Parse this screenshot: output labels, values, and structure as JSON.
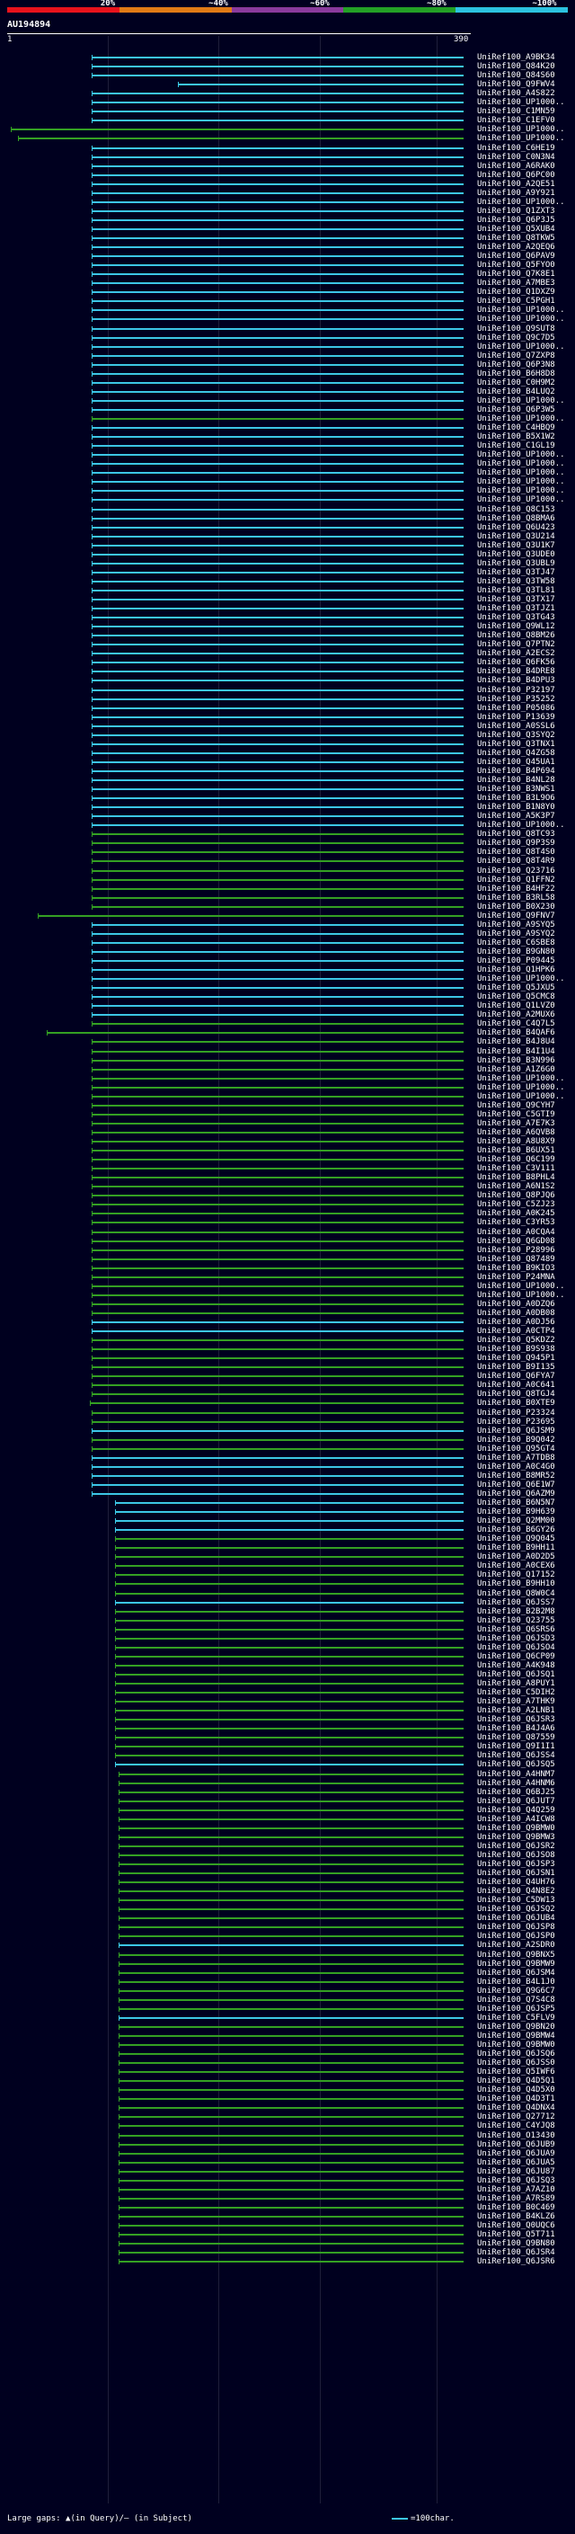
{
  "percent_labels": [
    "20%",
    "~40%",
    "~60%",
    "~80%",
    "~100%"
  ],
  "colors": {
    "red": "#e8121c",
    "orange": "#e07a16",
    "purple": "#8a3a9c",
    "green": "#23a026",
    "cyan": "#2cc2e0",
    "hit_blue": "#3cc6e6",
    "hit_green": "#34a023",
    "background": "#00001f"
  },
  "query_id": "AU194894",
  "axis": {
    "start": "1",
    "end": "390"
  },
  "legend": {
    "large_gaps": "Large gaps: ▲(in Query)/— (in Subject)",
    "scale": "=100char."
  },
  "hits": [
    {
      "label": "UniRef100_A9BK34",
      "color": "blue"
    },
    {
      "label": "UniRef100_Q84K20",
      "color": "blue"
    },
    {
      "label": "UniRef100_Q84S60",
      "color": "blue"
    },
    {
      "label": "UniRef100_Q9FWV4",
      "color": "blue"
    },
    {
      "label": "UniRef100_A4S822",
      "color": "blue"
    },
    {
      "label": "UniRef100_UP1000..",
      "color": "blue"
    },
    {
      "label": "UniRef100_C1MN59",
      "color": "blue"
    },
    {
      "label": "UniRef100_C1EFV0",
      "color": "blue"
    },
    {
      "label": "UniRef100_UP1000..",
      "color": "green"
    },
    {
      "label": "UniRef100_UP1000..",
      "color": "green"
    },
    {
      "label": "UniRef100_C6HE19",
      "color": "blue"
    },
    {
      "label": "UniRef100_C0N3N4",
      "color": "blue"
    },
    {
      "label": "UniRef100_A6RAK0",
      "color": "blue"
    },
    {
      "label": "UniRef100_Q6PC00",
      "color": "blue"
    },
    {
      "label": "UniRef100_A2QE51",
      "color": "blue"
    },
    {
      "label": "UniRef100_A9Y921",
      "color": "blue"
    },
    {
      "label": "UniRef100_UP1000..",
      "color": "blue"
    },
    {
      "label": "UniRef100_Q1ZXT3",
      "color": "blue"
    },
    {
      "label": "UniRef100_Q6P3J5",
      "color": "blue"
    },
    {
      "label": "UniRef100_Q5XUB4",
      "color": "blue"
    },
    {
      "label": "UniRef100_Q8TKW5",
      "color": "blue"
    },
    {
      "label": "UniRef100_A2QEQ6",
      "color": "blue"
    },
    {
      "label": "UniRef100_Q6PAV9",
      "color": "blue"
    },
    {
      "label": "UniRef100_Q5FYO0",
      "color": "blue"
    },
    {
      "label": "UniRef100_Q7K8E1",
      "color": "blue"
    },
    {
      "label": "UniRef100_A7MBE3",
      "color": "blue"
    },
    {
      "label": "UniRef100_Q1DXZ9",
      "color": "blue"
    },
    {
      "label": "UniRef100_C5PGH1",
      "color": "blue"
    },
    {
      "label": "UniRef100_UP1000..",
      "color": "blue"
    },
    {
      "label": "UniRef100_UP1000..",
      "color": "blue"
    },
    {
      "label": "UniRef100_Q9SUT8",
      "color": "blue"
    },
    {
      "label": "UniRef100_Q9C7D5",
      "color": "blue"
    },
    {
      "label": "UniRef100_UP1000..",
      "color": "blue"
    },
    {
      "label": "UniRef100_Q7ZXP8",
      "color": "blue"
    },
    {
      "label": "UniRef100_Q6P3N8",
      "color": "blue"
    },
    {
      "label": "UniRef100_B6H8D8",
      "color": "blue"
    },
    {
      "label": "UniRef100_C0H9M2",
      "color": "blue"
    },
    {
      "label": "UniRef100_B4LUQ2",
      "color": "blue"
    },
    {
      "label": "UniRef100_UP1000..",
      "color": "blue"
    },
    {
      "label": "UniRef100_Q6P3W5",
      "color": "blue"
    },
    {
      "label": "UniRef100_UP1000..",
      "color": "green"
    },
    {
      "label": "UniRef100_C4HBQ9",
      "color": "blue"
    },
    {
      "label": "UniRef100_B5X1W2",
      "color": "blue"
    },
    {
      "label": "UniRef100_C1GL19",
      "color": "blue"
    },
    {
      "label": "UniRef100_UP1000..",
      "color": "blue"
    },
    {
      "label": "UniRef100_UP1000..",
      "color": "blue"
    },
    {
      "label": "UniRef100_UP1000..",
      "color": "blue"
    },
    {
      "label": "UniRef100_UP1000..",
      "color": "blue"
    },
    {
      "label": "UniRef100_UP1000..",
      "color": "blue"
    },
    {
      "label": "UniRef100_UP1000..",
      "color": "blue"
    },
    {
      "label": "UniRef100_Q8C153",
      "color": "blue"
    },
    {
      "label": "UniRef100_Q8BMA6",
      "color": "blue"
    },
    {
      "label": "UniRef100_Q6U423",
      "color": "blue"
    },
    {
      "label": "UniRef100_Q3U214",
      "color": "blue"
    },
    {
      "label": "UniRef100_Q3U1K7",
      "color": "blue"
    },
    {
      "label": "UniRef100_Q3UDE0",
      "color": "blue"
    },
    {
      "label": "UniRef100_Q3UBL9",
      "color": "blue"
    },
    {
      "label": "UniRef100_Q3TJ47",
      "color": "blue"
    },
    {
      "label": "UniRef100_Q3TW58",
      "color": "blue"
    },
    {
      "label": "UniRef100_Q3TL81",
      "color": "blue"
    },
    {
      "label": "UniRef100_Q3TX17",
      "color": "blue"
    },
    {
      "label": "UniRef100_Q3TJZ1",
      "color": "blue"
    },
    {
      "label": "UniRef100_Q3TG43",
      "color": "blue"
    },
    {
      "label": "UniRef100_Q9WL12",
      "color": "blue"
    },
    {
      "label": "UniRef100_Q8BM26",
      "color": "blue"
    },
    {
      "label": "UniRef100_Q7PTN2",
      "color": "blue"
    },
    {
      "label": "UniRef100_A2ECS2",
      "color": "blue"
    },
    {
      "label": "UniRef100_Q6FK56",
      "color": "blue"
    },
    {
      "label": "UniRef100_B4DRE8",
      "color": "blue"
    },
    {
      "label": "UniRef100_B4DPU3",
      "color": "blue"
    },
    {
      "label": "UniRef100_P32197",
      "color": "blue"
    },
    {
      "label": "UniRef100_P35252",
      "color": "blue"
    },
    {
      "label": "UniRef100_P05086",
      "color": "blue"
    },
    {
      "label": "UniRef100_P13639",
      "color": "blue"
    },
    {
      "label": "UniRef100_A0SSL6",
      "color": "blue"
    },
    {
      "label": "UniRef100_Q3SYQ2",
      "color": "blue"
    },
    {
      "label": "UniRef100_Q3TNX1",
      "color": "blue"
    },
    {
      "label": "UniRef100_Q4ZG58",
      "color": "blue"
    },
    {
      "label": "UniRef100_Q45UA1",
      "color": "blue"
    },
    {
      "label": "UniRef100_B4P694",
      "color": "blue"
    },
    {
      "label": "UniRef100_B4NL28",
      "color": "blue"
    },
    {
      "label": "UniRef100_B3NWS1",
      "color": "blue"
    },
    {
      "label": "UniRef100_B3L9O6",
      "color": "blue"
    },
    {
      "label": "UniRef100_B1N8Y0",
      "color": "blue"
    },
    {
      "label": "UniRef100_A5K3P7",
      "color": "blue"
    },
    {
      "label": "UniRef100_UP1000..",
      "color": "blue"
    },
    {
      "label": "UniRef100_Q8TC93",
      "color": "green"
    },
    {
      "label": "UniRef100_Q9P3S9",
      "color": "green"
    },
    {
      "label": "UniRef100_Q8T4S0",
      "color": "green"
    },
    {
      "label": "UniRef100_Q8T4R9",
      "color": "green"
    },
    {
      "label": "UniRef100_Q23716",
      "color": "green"
    },
    {
      "label": "UniRef100_Q1FFN2",
      "color": "green"
    },
    {
      "label": "UniRef100_B4HF22",
      "color": "green"
    },
    {
      "label": "UniRef100_B3RL58",
      "color": "green"
    },
    {
      "label": "UniRef100_B0X230",
      "color": "green"
    },
    {
      "label": "UniRef100_Q9FNV7",
      "color": "green"
    },
    {
      "label": "UniRef100_A9SYQ5",
      "color": "blue"
    },
    {
      "label": "UniRef100_A9SYQ2",
      "color": "blue"
    },
    {
      "label": "UniRef100_C6SBE8",
      "color": "blue"
    },
    {
      "label": "UniRef100_B9GN80",
      "color": "blue"
    },
    {
      "label": "UniRef100_P09445",
      "color": "blue"
    },
    {
      "label": "UniRef100_Q1HPK6",
      "color": "blue"
    },
    {
      "label": "UniRef100_UP1000..",
      "color": "blue"
    },
    {
      "label": "UniRef100_Q5JXU5",
      "color": "blue"
    },
    {
      "label": "UniRef100_Q5CMC8",
      "color": "blue"
    },
    {
      "label": "UniRef100_Q1LVZ0",
      "color": "blue"
    },
    {
      "label": "UniRef100_A2MUX6",
      "color": "blue"
    },
    {
      "label": "UniRef100_C4Q7L5",
      "color": "green"
    },
    {
      "label": "UniRef100_B4QAF6",
      "color": "green"
    },
    {
      "label": "UniRef100_B4J8U4",
      "color": "green"
    },
    {
      "label": "UniRef100_B4I1U4",
      "color": "green"
    },
    {
      "label": "UniRef100_B3N996",
      "color": "green"
    },
    {
      "label": "UniRef100_A1Z6G0",
      "color": "green"
    },
    {
      "label": "UniRef100_UP1000..",
      "color": "green"
    },
    {
      "label": "UniRef100_UP1000..",
      "color": "green"
    },
    {
      "label": "UniRef100_UP1000..",
      "color": "green"
    },
    {
      "label": "UniRef100_Q9CYH7",
      "color": "green"
    },
    {
      "label": "UniRef100_C5GTI9",
      "color": "green"
    },
    {
      "label": "UniRef100_A7E7K3",
      "color": "green"
    },
    {
      "label": "UniRef100_A6QVB8",
      "color": "green"
    },
    {
      "label": "UniRef100_A8U8X9",
      "color": "green"
    },
    {
      "label": "UniRef100_B6UX51",
      "color": "green"
    },
    {
      "label": "UniRef100_Q6C199",
      "color": "green"
    },
    {
      "label": "UniRef100_C3V111",
      "color": "green"
    },
    {
      "label": "UniRef100_B8PHL4",
      "color": "green"
    },
    {
      "label": "UniRef100_A6N1S2",
      "color": "green"
    },
    {
      "label": "UniRef100_Q8PJQ6",
      "color": "green"
    },
    {
      "label": "UniRef100_C5ZJ23",
      "color": "green"
    },
    {
      "label": "UniRef100_A0K245",
      "color": "green"
    },
    {
      "label": "UniRef100_C3YR53",
      "color": "green"
    },
    {
      "label": "UniRef100_A0CQA4",
      "color": "green"
    },
    {
      "label": "UniRef100_Q6GD08",
      "color": "green"
    },
    {
      "label": "UniRef100_P28996",
      "color": "green"
    },
    {
      "label": "UniRef100_Q87489",
      "color": "green"
    },
    {
      "label": "UniRef100_B9KIO3",
      "color": "green"
    },
    {
      "label": "UniRef100_P24MNA",
      "color": "green"
    },
    {
      "label": "UniRef100_UP1000..",
      "color": "green"
    },
    {
      "label": "UniRef100_UP1000..",
      "color": "green"
    },
    {
      "label": "UniRef100_A0DZQ6",
      "color": "green"
    },
    {
      "label": "UniRef100_A0DB08",
      "color": "green"
    },
    {
      "label": "UniRef100_A0DJ56",
      "color": "blue"
    },
    {
      "label": "UniRef100_A0CTP4",
      "color": "blue"
    },
    {
      "label": "UniRef100_Q5KDZ2",
      "color": "green"
    },
    {
      "label": "UniRef100_B9S938",
      "color": "green"
    },
    {
      "label": "UniRef100_Q945P1",
      "color": "green"
    },
    {
      "label": "UniRef100_B9I135",
      "color": "green"
    },
    {
      "label": "UniRef100_Q6FYA7",
      "color": "green"
    },
    {
      "label": "UniRef100_A0C641",
      "color": "green"
    },
    {
      "label": "UniRef100_Q8TGJ4",
      "color": "green"
    },
    {
      "label": "UniRef100_B0XTE9",
      "color": "green"
    },
    {
      "label": "UniRef100_P23324",
      "color": "green"
    },
    {
      "label": "UniRef100_P23695",
      "color": "green"
    },
    {
      "label": "UniRef100_Q6JSM9",
      "color": "blue"
    },
    {
      "label": "UniRef100_B9Q042",
      "color": "green"
    },
    {
      "label": "UniRef100_Q95GT4",
      "color": "green"
    },
    {
      "label": "UniRef100_A7TDB8",
      "color": "blue"
    },
    {
      "label": "UniRef100_A0C4G0",
      "color": "blue"
    },
    {
      "label": "UniRef100_B8MR52",
      "color": "blue"
    },
    {
      "label": "UniRef100_Q6E1W7",
      "color": "blue"
    },
    {
      "label": "UniRef100_Q6AZM9",
      "color": "blue"
    },
    {
      "label": "UniRef100_B6N5N7",
      "color": "blue"
    },
    {
      "label": "UniRef100_B9H639",
      "color": "blue"
    },
    {
      "label": "UniRef100_Q2MM00",
      "color": "blue"
    },
    {
      "label": "UniRef100_B6GY26",
      "color": "blue"
    },
    {
      "label": "UniRef100_Q9Q045",
      "color": "green"
    },
    {
      "label": "UniRef100_B9HH11",
      "color": "green"
    },
    {
      "label": "UniRef100_A0D2D5",
      "color": "green"
    },
    {
      "label": "UniRef100_A0CEX6",
      "color": "green"
    },
    {
      "label": "UniRef100_Q17152",
      "color": "green"
    },
    {
      "label": "UniRef100_B9HH10",
      "color": "green"
    },
    {
      "label": "UniRef100_Q8W0C4",
      "color": "green"
    },
    {
      "label": "UniRef100_Q6JSS7",
      "color": "blue"
    },
    {
      "label": "UniRef100_B2B2M8",
      "color": "green"
    },
    {
      "label": "UniRef100_Q23755",
      "color": "green"
    },
    {
      "label": "UniRef100_Q6SRS6",
      "color": "green"
    },
    {
      "label": "UniRef100_Q6JSD3",
      "color": "green"
    },
    {
      "label": "UniRef100_Q6JSO4",
      "color": "green"
    },
    {
      "label": "UniRef100_Q6CP09",
      "color": "green"
    },
    {
      "label": "UniRef100_A4K948",
      "color": "green"
    },
    {
      "label": "UniRef100_Q6JSQ1",
      "color": "green"
    },
    {
      "label": "UniRef100_A8PUY1",
      "color": "green"
    },
    {
      "label": "UniRef100_C5DIH2",
      "color": "green"
    },
    {
      "label": "UniRef100_A7THK9",
      "color": "green"
    },
    {
      "label": "UniRef100_A2LNB1",
      "color": "green"
    },
    {
      "label": "UniRef100_Q6JSR3",
      "color": "green"
    },
    {
      "label": "UniRef100_B4J4A6",
      "color": "green"
    },
    {
      "label": "UniRef100_Q87559",
      "color": "green"
    },
    {
      "label": "UniRef100_Q9I1I1",
      "color": "green"
    },
    {
      "label": "UniRef100_Q6JSS4",
      "color": "green"
    },
    {
      "label": "UniRef100_Q6JSQ5",
      "color": "blue"
    },
    {
      "label": "UniRef100_A4HNM7",
      "color": "green"
    },
    {
      "label": "UniRef100_A4HNM6",
      "color": "green"
    },
    {
      "label": "UniRef100_Q6BJ25",
      "color": "green"
    },
    {
      "label": "UniRef100_Q6JUT7",
      "color": "green"
    },
    {
      "label": "UniRef100_Q4Q259",
      "color": "green"
    },
    {
      "label": "UniRef100_A4ICW8",
      "color": "green"
    },
    {
      "label": "UniRef100_Q9BMW0",
      "color": "green"
    },
    {
      "label": "UniRef100_Q9BMW3",
      "color": "green"
    },
    {
      "label": "UniRef100_Q6JSR2",
      "color": "green"
    },
    {
      "label": "UniRef100_Q6JSO8",
      "color": "green"
    },
    {
      "label": "UniRef100_Q6JSP3",
      "color": "green"
    },
    {
      "label": "UniRef100_Q6JSN1",
      "color": "green"
    },
    {
      "label": "UniRef100_Q4UH76",
      "color": "green"
    },
    {
      "label": "UniRef100_Q4N8E2",
      "color": "green"
    },
    {
      "label": "UniRef100_C5DW13",
      "color": "green"
    },
    {
      "label": "UniRef100_Q6JSQ2",
      "color": "green"
    },
    {
      "label": "UniRef100_Q6JUB4",
      "color": "green"
    },
    {
      "label": "UniRef100_Q6JSP8",
      "color": "green"
    },
    {
      "label": "UniRef100_Q6JSP0",
      "color": "green"
    },
    {
      "label": "UniRef100_A2SDR0",
      "color": "blue"
    },
    {
      "label": "UniRef100_Q9BNX5",
      "color": "green"
    },
    {
      "label": "UniRef100_Q9BMW9",
      "color": "green"
    },
    {
      "label": "UniRef100_Q6JSM4",
      "color": "green"
    },
    {
      "label": "UniRef100_B4L1J0",
      "color": "green"
    },
    {
      "label": "UniRef100_Q9G6C7",
      "color": "green"
    },
    {
      "label": "UniRef100_Q7S4C8",
      "color": "green"
    },
    {
      "label": "UniRef100_Q6JSP5",
      "color": "green"
    },
    {
      "label": "UniRef100_C5FLV9",
      "color": "blue"
    },
    {
      "label": "UniRef100_Q9BN20",
      "color": "green"
    },
    {
      "label": "UniRef100_Q9BMW4",
      "color": "green"
    },
    {
      "label": "UniRef100_Q9BMW0",
      "color": "green"
    },
    {
      "label": "UniRef100_Q6JSQ6",
      "color": "green"
    },
    {
      "label": "UniRef100_Q6JSS0",
      "color": "green"
    },
    {
      "label": "UniRef100_Q5IWF6",
      "color": "green"
    },
    {
      "label": "UniRef100_Q4D5Q1",
      "color": "green"
    },
    {
      "label": "UniRef100_Q4D5X0",
      "color": "green"
    },
    {
      "label": "UniRef100_Q4D3T1",
      "color": "green"
    },
    {
      "label": "UniRef100_Q4DNX4",
      "color": "green"
    },
    {
      "label": "UniRef100_Q27712",
      "color": "green"
    },
    {
      "label": "UniRef100_C4YJQ8",
      "color": "green"
    },
    {
      "label": "UniRef100_O13430",
      "color": "green"
    },
    {
      "label": "UniRef100_Q6JUB9",
      "color": "green"
    },
    {
      "label": "UniRef100_Q6JUA9",
      "color": "green"
    },
    {
      "label": "UniRef100_Q6JUA5",
      "color": "green"
    },
    {
      "label": "UniRef100_Q6JU87",
      "color": "green"
    },
    {
      "label": "UniRef100_Q6JSQ3",
      "color": "green"
    },
    {
      "label": "UniRef100_A7AZ10",
      "color": "green"
    },
    {
      "label": "UniRef100_A7RS89",
      "color": "green"
    },
    {
      "label": "UniRef100_B0C469",
      "color": "green"
    },
    {
      "label": "UniRef100_B4KLZ6",
      "color": "green"
    },
    {
      "label": "UniRef100_Q0UQC6",
      "color": "green"
    },
    {
      "label": "UniRef100_Q5T711",
      "color": "green"
    },
    {
      "label": "UniRef100_Q9BN80",
      "color": "green"
    },
    {
      "label": "UniRef100_Q6JSR4",
      "color": "green"
    },
    {
      "label": "UniRef100_Q6JSR6",
      "color": "green"
    }
  ]
}
